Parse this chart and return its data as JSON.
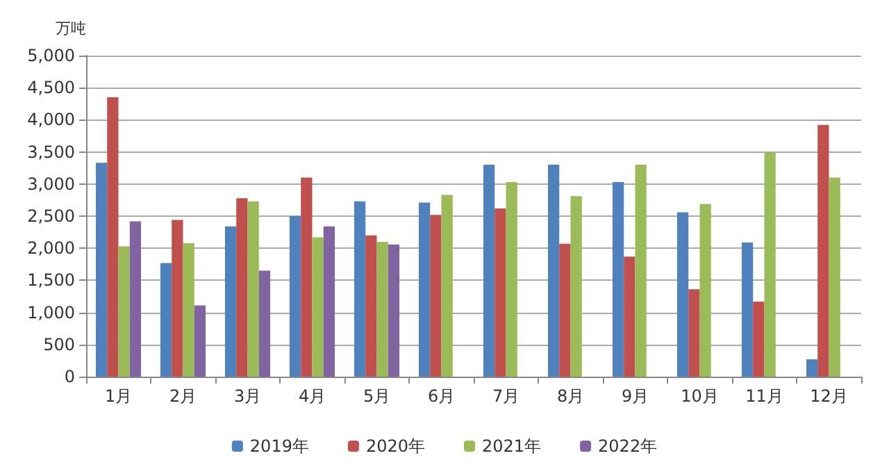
{
  "chart_data": {
    "type": "bar",
    "ylabel": "万吨",
    "categories": [
      "1月",
      "2月",
      "3月",
      "4月",
      "5月",
      "6月",
      "7月",
      "8月",
      "9月",
      "10月",
      "11月",
      "12月"
    ],
    "series": [
      {
        "name": "2019年",
        "color": "#4f81bd",
        "values": [
          3330,
          1770,
          2340,
          2500,
          2730,
          2710,
          3300,
          3300,
          3030,
          2560,
          2090,
          270
        ]
      },
      {
        "name": "2020年",
        "color": "#c0504d",
        "values": [
          4350,
          2440,
          2780,
          3100,
          2200,
          2520,
          2620,
          2070,
          1870,
          1360,
          1170,
          3920
        ]
      },
      {
        "name": "2021年",
        "color": "#9bbb59",
        "values": [
          2030,
          2080,
          2730,
          2170,
          2100,
          2830,
          3030,
          2810,
          3300,
          2690,
          3490,
          3100
        ]
      },
      {
        "name": "2022年",
        "color": "#8064a2",
        "values": [
          2420,
          1110,
          1650,
          2340,
          2060,
          null,
          null,
          null,
          null,
          null,
          null,
          null
        ]
      }
    ],
    "ylim": [
      0,
      5000
    ],
    "yticks": [
      0,
      500,
      {
        "value": 1000,
        "label": "1,000"
      },
      {
        "value": 1500,
        "label": "1,500"
      },
      {
        "value": 2000,
        "label": "2,000"
      },
      {
        "value": 2500,
        "label": "2,500"
      },
      {
        "value": 3000,
        "label": "3,000"
      },
      {
        "value": 3500,
        "label": "3,500"
      },
      {
        "value": 4000,
        "label": "4,000"
      },
      {
        "value": 4500,
        "label": "4,500"
      },
      {
        "value": 5000,
        "label": "5,000"
      }
    ],
    "grid": "y",
    "legend": "bottom"
  }
}
